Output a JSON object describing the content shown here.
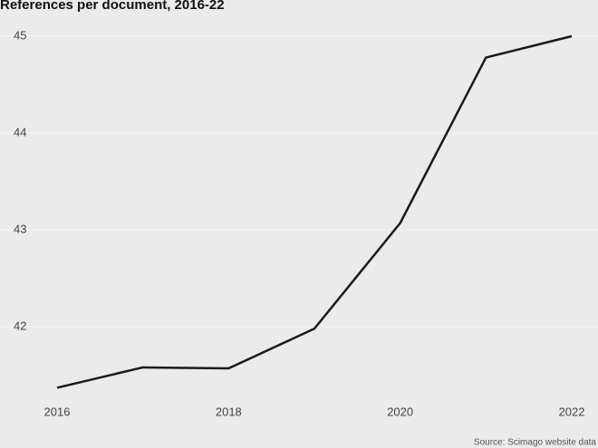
{
  "chart_data": {
    "type": "line",
    "title": "References per document, 2016-22",
    "source": "Source: Scimago website data",
    "x": [
      2016,
      2017,
      2018,
      2019,
      2020,
      2021,
      2022
    ],
    "series": [
      {
        "name": "References per document",
        "color": "#1a1a1a",
        "values": [
          41.37,
          41.58,
          41.57,
          41.98,
          43.07,
          44.78,
          45.0
        ]
      }
    ],
    "xlim": [
      2016,
      2022
    ],
    "xticks": [
      2016,
      2018,
      2020,
      2022
    ],
    "ylim": [
      41.25,
      45.2
    ],
    "yticks": [
      42,
      43,
      44,
      45
    ],
    "grid": true
  }
}
